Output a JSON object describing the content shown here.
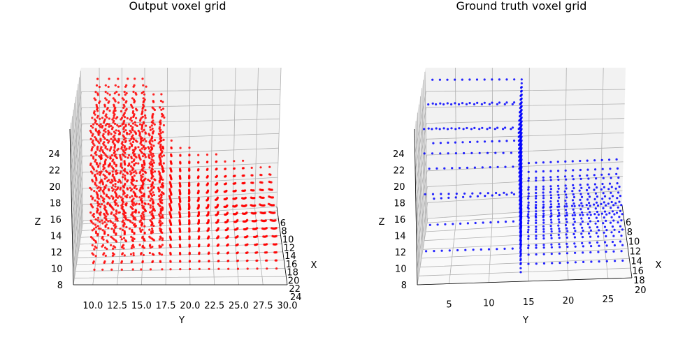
{
  "chart_data": [
    {
      "type": "scatter3d",
      "title": "Output voxel grid",
      "xlabel": "X",
      "ylabel": "Y",
      "zlabel": "Z",
      "color": "#ff0000",
      "xticks": [
        "6",
        "8",
        "10",
        "12",
        "14",
        "16",
        "18",
        "20",
        "22",
        "24"
      ],
      "yticks": [
        "10.0",
        "12.5",
        "15.0",
        "17.5",
        "20.0",
        "22.5",
        "25.0",
        "27.5",
        "30.0"
      ],
      "zticks": [
        "8",
        "10",
        "12",
        "14",
        "16",
        "18",
        "20",
        "22",
        "24"
      ],
      "xlim": [
        5,
        24
      ],
      "ylim": [
        8,
        30
      ],
      "zlim": [
        8,
        27
      ],
      "grid": true,
      "shape": "dense vertical block at Y 10-17 (Z 8-27) with lower step at Y 17-29 (Z 8-18)"
    },
    {
      "type": "scatter3d",
      "title": "Ground truth voxel grid",
      "xlabel": "X",
      "ylabel": "Y",
      "zlabel": "Z",
      "color": "#0000ff",
      "xticks": [
        "6",
        "8",
        "10",
        "12",
        "14",
        "16",
        "18",
        "20"
      ],
      "yticks": [
        "5",
        "10",
        "15",
        "20",
        "25"
      ],
      "zticks": [
        "8",
        "10",
        "12",
        "14",
        "16",
        "18",
        "20",
        "22",
        "24"
      ],
      "xlim": [
        5,
        20
      ],
      "ylim": [
        1,
        28
      ],
      "zlim": [
        8,
        27
      ],
      "grid": true,
      "shape": "vertical column at Y 14 with horizontal shelves at Z 11, 18, 23, 26 and a lower block at Y 14-27"
    }
  ]
}
